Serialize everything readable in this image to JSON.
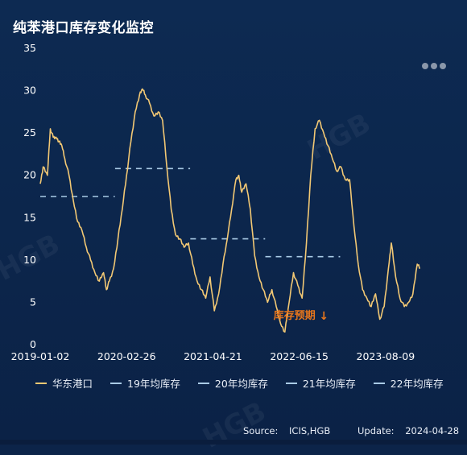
{
  "header": {
    "title": "纯苯港口库存变化监控"
  },
  "more_icon": "more-horizontal-icon",
  "annotation": {
    "label": "库存预期",
    "arrow": "↓",
    "color": "#e8761c"
  },
  "footer": {
    "source_label": "Source:",
    "source_value": "ICIS,HGB",
    "update_label": "Update:",
    "update_value": "2024-04-28"
  },
  "watermark": "HGB",
  "colors": {
    "line": "#f2c874",
    "avg": "#a9cbe6",
    "axis_text": "#ffffff",
    "annotation": "#e8761c"
  },
  "chart_data": {
    "type": "line",
    "xlabel": "",
    "ylabel": "",
    "ylim": [
      0,
      35
    ],
    "yticks": [
      0,
      5,
      10,
      15,
      20,
      25,
      30,
      35
    ],
    "xlim": [
      "2019-01-02",
      "2024-04-28"
    ],
    "xticks": [
      "2019-01-02",
      "2020-02-26",
      "2021-04-21",
      "2022-06-15",
      "2023-08-09"
    ],
    "grid": false,
    "legend": "bottom",
    "series": [
      {
        "name": "华东港口",
        "points": [
          [
            "2019-01-02",
            19.0
          ],
          [
            "2019-01-16",
            21.0
          ],
          [
            "2019-02-06",
            20.0
          ],
          [
            "2019-02-20",
            25.5
          ],
          [
            "2019-03-06",
            24.5
          ],
          [
            "2019-03-20",
            24.5
          ],
          [
            "2019-04-03",
            24.0
          ],
          [
            "2019-04-17",
            23.5
          ],
          [
            "2019-05-01",
            22.0
          ],
          [
            "2019-05-22",
            20.0
          ],
          [
            "2019-06-12",
            17.0
          ],
          [
            "2019-07-03",
            14.5
          ],
          [
            "2019-07-24",
            13.5
          ],
          [
            "2019-08-14",
            11.5
          ],
          [
            "2019-09-04",
            10.0
          ],
          [
            "2019-09-25",
            8.5
          ],
          [
            "2019-10-16",
            7.5
          ],
          [
            "2019-11-06",
            8.5
          ],
          [
            "2019-11-20",
            6.5
          ],
          [
            "2019-12-04",
            7.5
          ],
          [
            "2019-12-25",
            9.0
          ],
          [
            "2020-01-15",
            12.5
          ],
          [
            "2020-02-05",
            16.0
          ],
          [
            "2020-02-26",
            20.0
          ],
          [
            "2020-03-18",
            24.0
          ],
          [
            "2020-04-08",
            27.5
          ],
          [
            "2020-04-29",
            29.5
          ],
          [
            "2020-05-13",
            30.2
          ],
          [
            "2020-05-27",
            29.5
          ],
          [
            "2020-06-17",
            28.5
          ],
          [
            "2020-07-08",
            27.0
          ],
          [
            "2020-07-29",
            27.5
          ],
          [
            "2020-08-19",
            26.5
          ],
          [
            "2020-09-09",
            21.0
          ],
          [
            "2020-09-30",
            16.0
          ],
          [
            "2020-10-21",
            13.0
          ],
          [
            "2020-11-11",
            12.5
          ],
          [
            "2020-12-02",
            11.5
          ],
          [
            "2020-12-23",
            12.0
          ],
          [
            "2021-01-13",
            9.5
          ],
          [
            "2021-02-03",
            7.5
          ],
          [
            "2021-02-24",
            6.5
          ],
          [
            "2021-03-17",
            5.5
          ],
          [
            "2021-04-07",
            8.0
          ],
          [
            "2021-04-28",
            4.0
          ],
          [
            "2021-05-19",
            6.0
          ],
          [
            "2021-06-09",
            9.5
          ],
          [
            "2021-06-30",
            12.5
          ],
          [
            "2021-07-21",
            16.0
          ],
          [
            "2021-08-11",
            19.5
          ],
          [
            "2021-08-25",
            20.0
          ],
          [
            "2021-09-08",
            18.0
          ],
          [
            "2021-09-29",
            19.0
          ],
          [
            "2021-10-20",
            16.0
          ],
          [
            "2021-11-10",
            10.5
          ],
          [
            "2021-12-01",
            8.0
          ],
          [
            "2021-12-22",
            6.5
          ],
          [
            "2022-01-12",
            5.0
          ],
          [
            "2022-02-02",
            6.5
          ],
          [
            "2022-02-23",
            4.5
          ],
          [
            "2022-03-16",
            2.5
          ],
          [
            "2022-04-06",
            1.5
          ],
          [
            "2022-04-27",
            5.0
          ],
          [
            "2022-05-18",
            8.5
          ],
          [
            "2022-06-08",
            7.0
          ],
          [
            "2022-06-29",
            5.5
          ],
          [
            "2022-07-20",
            12.0
          ],
          [
            "2022-08-10",
            20.0
          ],
          [
            "2022-08-31",
            25.5
          ],
          [
            "2022-09-21",
            26.5
          ],
          [
            "2022-10-12",
            25.0
          ],
          [
            "2022-11-02",
            23.5
          ],
          [
            "2022-11-23",
            22.0
          ],
          [
            "2022-12-14",
            20.5
          ],
          [
            "2023-01-04",
            21.0
          ],
          [
            "2023-01-25",
            19.5
          ],
          [
            "2023-02-15",
            19.5
          ],
          [
            "2023-03-08",
            14.0
          ],
          [
            "2023-03-29",
            9.5
          ],
          [
            "2023-04-19",
            6.5
          ],
          [
            "2023-05-10",
            5.5
          ],
          [
            "2023-05-31",
            4.5
          ],
          [
            "2023-06-21",
            6.0
          ],
          [
            "2023-07-12",
            3.0
          ],
          [
            "2023-08-02",
            4.5
          ],
          [
            "2023-08-23",
            9.0
          ],
          [
            "2023-09-06",
            12.0
          ],
          [
            "2023-09-27",
            8.0
          ],
          [
            "2023-10-18",
            5.5
          ],
          [
            "2023-11-08",
            4.5
          ],
          [
            "2023-11-29",
            5.0
          ],
          [
            "2023-12-20",
            6.0
          ],
          [
            "2024-01-10",
            9.5
          ],
          [
            "2024-01-24",
            9.0
          ]
        ]
      },
      {
        "name": "19年均库存",
        "segment": [
          "2019-01-02",
          "2019-12-31"
        ],
        "value": 17.5
      },
      {
        "name": "20年均库存",
        "segment": [
          "2020-01-01",
          "2020-12-31"
        ],
        "value": 20.8
      },
      {
        "name": "21年均库存",
        "segment": [
          "2021-01-01",
          "2021-12-31"
        ],
        "value": 12.5
      },
      {
        "name": "22年均库存",
        "segment": [
          "2022-01-01",
          "2022-12-31"
        ],
        "value": 10.4
      }
    ]
  }
}
